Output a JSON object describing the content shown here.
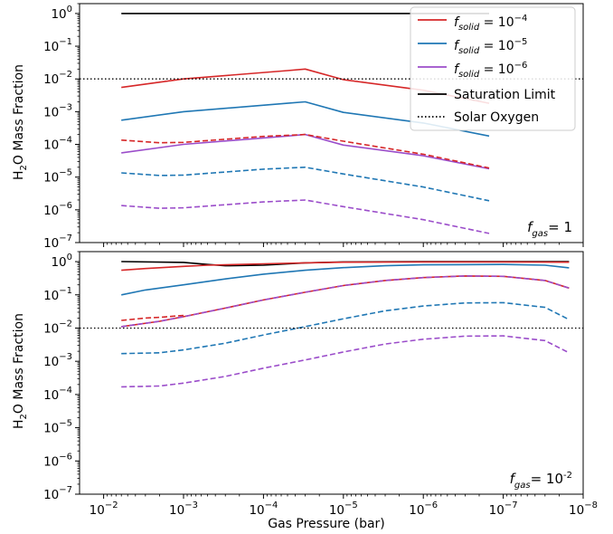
{
  "figure": {
    "xlabel": "Gas Pressure (bar)",
    "ylabel_prefix": "H",
    "ylabel_sub": "2",
    "ylabel_suffix": "O Mass Fraction"
  },
  "legend": {
    "items": [
      {
        "label_main": "f",
        "label_sub": "solid",
        "label_eq": " = 10",
        "label_exp": "−4",
        "color": "#d62728",
        "style": "solid"
      },
      {
        "label_main": "f",
        "label_sub": "solid",
        "label_eq": " = 10",
        "label_exp": "−5",
        "color": "#1f77b4",
        "style": "solid"
      },
      {
        "label_main": "f",
        "label_sub": "solid",
        "label_eq": " = 10",
        "label_exp": "−6",
        "color": "#9b4dca",
        "style": "solid"
      },
      {
        "label": "Saturation Limit",
        "color": "#000000",
        "style": "solid"
      },
      {
        "label": "Solar Oxygen",
        "color": "#000000",
        "style": "dotted"
      }
    ]
  },
  "colors": {
    "f1e-4": "#d62728",
    "f1e-5": "#1f77b4",
    "f1e-6": "#9b4dca",
    "saturation": "#000000",
    "solar": "#000000"
  },
  "chart_data": [
    {
      "type": "line",
      "panel": "top",
      "annotation": {
        "main": "f",
        "sub": "gas",
        "rest": "= 1"
      },
      "xscale": "log",
      "xlim": [
        0.02,
        1e-08
      ],
      "x_inverted": true,
      "yscale": "log",
      "ylim": [
        1e-07,
        2
      ],
      "x_ticks": [
        {
          "label": "10",
          "exp": "−2"
        },
        {
          "label": "10",
          "exp": "−3"
        },
        {
          "label": "10",
          "exp": "−4"
        },
        {
          "label": "10",
          "exp": "−5"
        },
        {
          "label": "10",
          "exp": "−6"
        },
        {
          "label": "10",
          "exp": "−7"
        },
        {
          "label": "10",
          "exp": "−8"
        }
      ],
      "y_ticks": [
        {
          "label": "10",
          "exp": "0"
        },
        {
          "label": "10",
          "exp": "−1"
        },
        {
          "label": "10",
          "exp": "−2"
        },
        {
          "label": "10",
          "exp": "−3"
        },
        {
          "label": "10",
          "exp": "−4"
        },
        {
          "label": "10",
          "exp": "−5"
        },
        {
          "label": "10",
          "exp": "−6"
        },
        {
          "label": "10",
          "exp": "−7"
        }
      ],
      "hlines": [
        {
          "y": 0.01,
          "style": "dotted",
          "color": "#000000"
        }
      ],
      "series": [
        {
          "color": "#000000",
          "dash": "solid",
          "x": [
            0.006,
            1.5e-07
          ],
          "y": [
            1.0,
            1.0
          ]
        },
        {
          "color": "#d62728",
          "dash": "solid",
          "x": [
            0.006,
            0.001,
            5e-05,
            3e-05,
            1e-05,
            1e-06,
            1.5e-07
          ],
          "y": [
            0.0055,
            0.01,
            0.018,
            0.02,
            0.0095,
            0.0045,
            0.0018
          ]
        },
        {
          "color": "#1f77b4",
          "dash": "solid",
          "x": [
            0.006,
            0.001,
            5e-05,
            3e-05,
            1e-05,
            1e-06,
            1.5e-07
          ],
          "y": [
            0.00055,
            0.001,
            0.0018,
            0.002,
            0.00095,
            0.00045,
            0.00018
          ]
        },
        {
          "color": "#9b4dca",
          "dash": "solid",
          "x": [
            0.006,
            0.001,
            5e-05,
            3e-05,
            1e-05,
            1e-06,
            1.5e-07
          ],
          "y": [
            5.5e-05,
            0.0001,
            0.00018,
            0.0002,
            9.5e-05,
            4.5e-05,
            1.8e-05
          ]
        },
        {
          "color": "#d62728",
          "dash": "dashed",
          "x": [
            0.006,
            0.002,
            0.001,
            0.0001,
            3e-05,
            1e-05,
            1e-06,
            1.5e-07
          ],
          "y": [
            0.000135,
            0.000112,
            0.000115,
            0.000175,
            0.0002,
            0.000125,
            5e-05,
            1.9e-05
          ]
        },
        {
          "color": "#1f77b4",
          "dash": "dashed",
          "x": [
            0.006,
            0.002,
            0.001,
            0.0001,
            3e-05,
            1e-05,
            1e-06,
            1.5e-07
          ],
          "y": [
            1.35e-05,
            1.12e-05,
            1.15e-05,
            1.75e-05,
            2e-05,
            1.25e-05,
            5e-06,
            1.9e-06
          ]
        },
        {
          "color": "#9b4dca",
          "dash": "dashed",
          "x": [
            0.006,
            0.002,
            0.001,
            0.0001,
            3e-05,
            1e-05,
            1e-06,
            1.5e-07
          ],
          "y": [
            1.35e-06,
            1.12e-06,
            1.15e-06,
            1.75e-06,
            2e-06,
            1.25e-06,
            5e-07,
            1.9e-07
          ]
        }
      ]
    },
    {
      "type": "line",
      "panel": "bottom",
      "annotation": {
        "main": "f",
        "sub": "gas",
        "rest": "= 10",
        "exp": "-2"
      },
      "xscale": "log",
      "xlim": [
        0.02,
        1e-08
      ],
      "x_inverted": true,
      "yscale": "log",
      "ylim": [
        1e-07,
        2
      ],
      "x_ticks": [
        {
          "label": "10",
          "exp": "−2"
        },
        {
          "label": "10",
          "exp": "−3"
        },
        {
          "label": "10",
          "exp": "−4"
        },
        {
          "label": "10",
          "exp": "−5"
        },
        {
          "label": "10",
          "exp": "−6"
        },
        {
          "label": "10",
          "exp": "−7"
        },
        {
          "label": "10",
          "exp": "−8"
        }
      ],
      "y_ticks": [
        {
          "label": "10",
          "exp": "0"
        },
        {
          "label": "10",
          "exp": "−1"
        },
        {
          "label": "10",
          "exp": "−2"
        },
        {
          "label": "10",
          "exp": "−3"
        },
        {
          "label": "10",
          "exp": "−4"
        },
        {
          "label": "10",
          "exp": "−5"
        },
        {
          "label": "10",
          "exp": "−6"
        },
        {
          "label": "10",
          "exp": "−7"
        }
      ],
      "hlines": [
        {
          "y": 0.01,
          "style": "dotted",
          "color": "#000000"
        }
      ],
      "series": [
        {
          "color": "#000000",
          "dash": "solid",
          "x": [
            0.006,
            0.001,
            0.0005,
            0.0003,
            0.0001,
            3e-05,
            1e-05,
            1e-06,
            1e-07,
            1.5e-08
          ],
          "y": [
            1.0,
            0.95,
            0.82,
            0.75,
            0.78,
            0.92,
            0.98,
            1.0,
            1.0,
            1.0
          ]
        },
        {
          "color": "#d62728",
          "dash": "solid",
          "x": [
            0.006,
            0.003,
            0.001,
            0.0005,
            0.0003,
            0.0001,
            3e-05,
            1e-05,
            1e-06,
            1e-07,
            1.5e-08
          ],
          "y": [
            0.55,
            0.62,
            0.72,
            0.78,
            0.8,
            0.86,
            0.92,
            0.96,
            0.98,
            0.98,
            0.96
          ]
        },
        {
          "color": "#1f77b4",
          "dash": "solid",
          "x": [
            0.006,
            0.003,
            0.001,
            0.0003,
            0.0001,
            3e-05,
            1e-05,
            3e-06,
            1e-06,
            1e-07,
            3e-08,
            1.5e-08
          ],
          "y": [
            0.1,
            0.14,
            0.2,
            0.3,
            0.42,
            0.55,
            0.66,
            0.75,
            0.8,
            0.82,
            0.78,
            0.65
          ]
        },
        {
          "color": "#d62728",
          "dash": "solid",
          "x": [
            0.006,
            0.002,
            0.001,
            0.0003,
            0.0001,
            3e-05,
            1e-05,
            3e-06,
            1e-06,
            3e-07,
            1e-07,
            3e-08,
            1.5e-08
          ],
          "y": [
            0.011,
            0.016,
            0.022,
            0.04,
            0.07,
            0.12,
            0.19,
            0.27,
            0.33,
            0.37,
            0.36,
            0.27,
            0.16
          ]
        },
        {
          "color": "#9b4dca",
          "dash": "dashed",
          "x": [
            0.006,
            0.002,
            0.001,
            0.0003,
            0.0001,
            3e-05,
            1e-05,
            3e-06,
            1e-06,
            3e-07,
            1e-07,
            3e-08,
            1.5e-08
          ],
          "y": [
            0.011,
            0.016,
            0.022,
            0.04,
            0.07,
            0.12,
            0.19,
            0.27,
            0.33,
            0.37,
            0.36,
            0.27,
            0.16
          ]
        },
        {
          "color": "#d62728",
          "dash": "dashed",
          "x": [
            0.006,
            0.003,
            0.002,
            0.001
          ],
          "y": [
            0.017,
            0.02,
            0.021,
            0.024
          ]
        },
        {
          "color": "#1f77b4",
          "dash": "dashed",
          "x": [
            0.006,
            0.002,
            0.001,
            0.0003,
            0.0001,
            3e-05,
            1e-05,
            3e-06,
            1e-06,
            3e-07,
            1e-07,
            3e-08,
            1.5e-08
          ],
          "y": [
            0.0017,
            0.0018,
            0.0022,
            0.0035,
            0.0062,
            0.011,
            0.019,
            0.033,
            0.046,
            0.057,
            0.058,
            0.042,
            0.018
          ]
        },
        {
          "color": "#9b4dca",
          "dash": "dashed",
          "x": [
            0.006,
            0.002,
            0.001,
            0.0003,
            0.0001,
            3e-05,
            1e-05,
            3e-06,
            1e-06,
            3e-07,
            1e-07,
            3e-08,
            1.5e-08
          ],
          "y": [
            0.00017,
            0.00018,
            0.00022,
            0.00035,
            0.00062,
            0.0011,
            0.0019,
            0.0033,
            0.0046,
            0.0057,
            0.0058,
            0.0042,
            0.0018
          ]
        }
      ]
    }
  ]
}
